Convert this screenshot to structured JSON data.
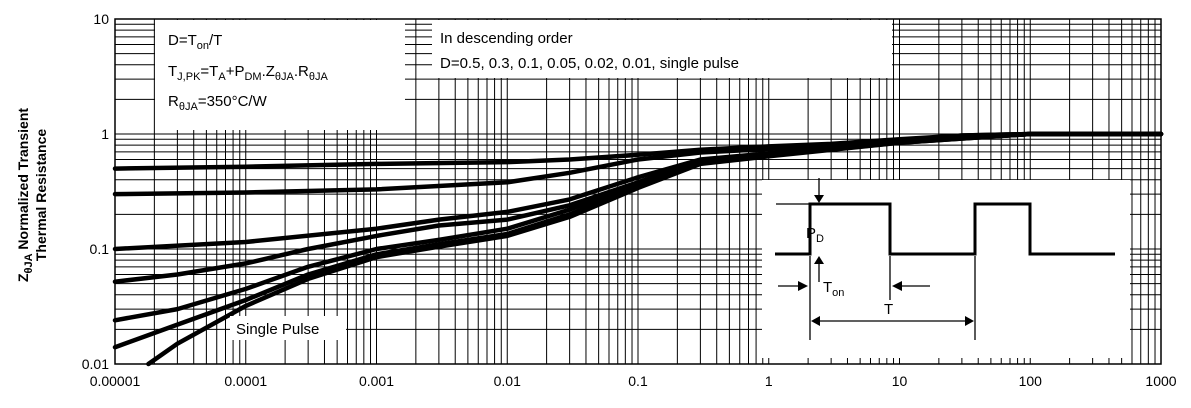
{
  "chart_data": {
    "type": "line",
    "title": "",
    "xscale": "log",
    "yscale": "log",
    "xlim": [
      1e-05,
      1000
    ],
    "ylim": [
      0.01,
      10
    ],
    "grid": true,
    "ylabel_line1": "ZθJA Normalized Transient",
    "ylabel_line2": "Thermal Resistance",
    "ylabel_main": "Z",
    "ylabel_sub": "θJA",
    "ylabel_rest": " Normalized Transient",
    "xticks": [
      "0.00001",
      "0.0001",
      "0.001",
      "0.01",
      "0.1",
      "1",
      "10",
      "100",
      "1000"
    ],
    "yticks": [
      "0.01",
      "0.1",
      "1",
      "10"
    ],
    "xtick_values": [
      1e-05,
      0.0001,
      0.001,
      0.01,
      0.1,
      1,
      10,
      100,
      1000
    ],
    "ytick_values": [
      0.01,
      0.1,
      1,
      10
    ],
    "series": [
      {
        "x": [
          1e-05,
          0.0001,
          0.001,
          0.01,
          0.03,
          0.1,
          0.3,
          1,
          3,
          10,
          30,
          100,
          1000
        ],
        "y": [
          0.5,
          0.52,
          0.55,
          0.57,
          0.6,
          0.66,
          0.73,
          0.78,
          0.82,
          0.9,
          0.97,
          1.0,
          1.0
        ]
      },
      {
        "x": [
          1e-05,
          0.0001,
          0.001,
          0.01,
          0.03,
          0.1,
          0.3,
          1,
          3,
          10,
          30,
          100,
          1000
        ],
        "y": [
          0.3,
          0.31,
          0.33,
          0.38,
          0.46,
          0.6,
          0.69,
          0.74,
          0.8,
          0.88,
          0.97,
          1.0,
          1.0
        ]
      },
      {
        "x": [
          1e-05,
          0.0001,
          0.001,
          0.003,
          0.01,
          0.03,
          0.1,
          0.3,
          1,
          3,
          10,
          100,
          1000
        ],
        "y": [
          0.1,
          0.115,
          0.15,
          0.18,
          0.21,
          0.27,
          0.42,
          0.6,
          0.68,
          0.75,
          0.86,
          1.0,
          1.0
        ]
      },
      {
        "x": [
          1e-05,
          3e-05,
          0.0001,
          0.0003,
          0.001,
          0.003,
          0.01,
          0.03,
          0.1,
          0.3,
          1,
          10,
          100,
          1000
        ],
        "y": [
          0.052,
          0.06,
          0.075,
          0.1,
          0.13,
          0.16,
          0.18,
          0.24,
          0.38,
          0.58,
          0.67,
          0.85,
          1.0,
          1.0
        ]
      },
      {
        "x": [
          1e-05,
          3e-05,
          0.0001,
          0.0003,
          0.001,
          0.003,
          0.01,
          0.03,
          0.1,
          0.3,
          1,
          10,
          100,
          1000
        ],
        "y": [
          0.024,
          0.03,
          0.045,
          0.07,
          0.1,
          0.12,
          0.15,
          0.22,
          0.37,
          0.57,
          0.66,
          0.85,
          1.0,
          1.0
        ]
      },
      {
        "x": [
          1e-05,
          3e-05,
          0.0001,
          0.0003,
          0.001,
          0.003,
          0.01,
          0.03,
          0.1,
          0.3,
          1,
          10,
          100,
          1000
        ],
        "y": [
          0.014,
          0.022,
          0.036,
          0.06,
          0.09,
          0.11,
          0.135,
          0.2,
          0.35,
          0.56,
          0.65,
          0.84,
          1.0,
          1.0
        ]
      },
      {
        "x": [
          1.8e-05,
          3e-05,
          0.0001,
          0.0003,
          0.001,
          0.003,
          0.01,
          0.03,
          0.1,
          0.3,
          1,
          10,
          100,
          1000
        ],
        "y": [
          0.01,
          0.015,
          0.032,
          0.055,
          0.085,
          0.105,
          0.13,
          0.19,
          0.34,
          0.55,
          0.64,
          0.84,
          1.0,
          1.0
        ]
      }
    ],
    "annotations": {
      "box1": {
        "line1_main": "D=T",
        "line1_sub": "on",
        "line1_rest": "/T",
        "line2_a": "T",
        "line2_a_sub": "J,PK",
        "line2_b": "=T",
        "line2_b_sub": "A",
        "line2_c": "+P",
        "line2_c_sub": "DM",
        "line2_d": ".Z",
        "line2_d_sub": "θJA",
        "line2_e": ".R",
        "line2_e_sub": "θJA",
        "line3_main": "R",
        "line3_sub": "θJA",
        "line3_rest": "=350°C/W"
      },
      "box2": {
        "line1": "In descending order",
        "line2": "D=0.5, 0.3, 0.1, 0.05, 0.02, 0.01, single pulse"
      },
      "single_pulse_label": "Single Pulse",
      "inset": {
        "pd_main": "P",
        "pd_sub": "D",
        "ton_main": "T",
        "ton_sub": "on",
        "t_label": "T"
      }
    }
  }
}
